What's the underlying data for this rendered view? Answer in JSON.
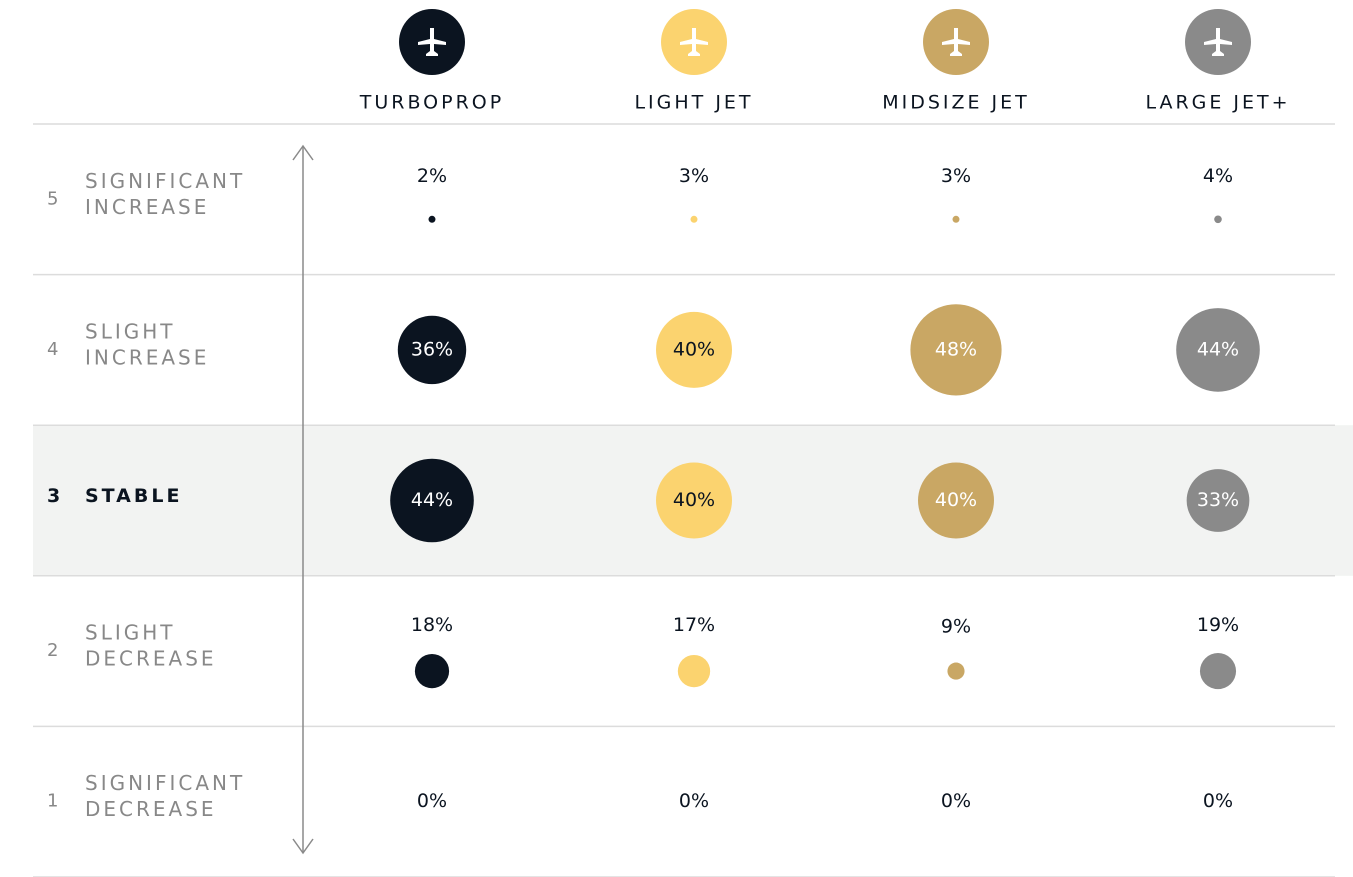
{
  "chart_data": {
    "type": "bubble",
    "levels": [
      {
        "number": "5",
        "label": [
          "SIGNIFICANT",
          "INCREASE"
        ]
      },
      {
        "number": "4",
        "label": [
          "SLIGHT",
          "INCREASE"
        ]
      },
      {
        "number": "3",
        "label": [
          "STABLE"
        ]
      },
      {
        "number": "2",
        "label": [
          "SLIGHT",
          "DECREASE"
        ]
      },
      {
        "number": "1",
        "label": [
          "SIGNIFICANT",
          "DECREASE"
        ]
      }
    ],
    "highlighted_level": "3",
    "series": [
      {
        "name": "TURBOPROP",
        "color": "#0b1420",
        "values": [
          2,
          36,
          44,
          18,
          0
        ],
        "value_labels": [
          "2%",
          "36%",
          "44%",
          "18%",
          "0%"
        ]
      },
      {
        "name": "LIGHT JET",
        "color": "#fbd36f",
        "values": [
          3,
          40,
          40,
          17,
          0
        ],
        "value_labels": [
          "3%",
          "40%",
          "40%",
          "17%",
          "0%"
        ]
      },
      {
        "name": "MIDSIZE JET",
        "color": "#c9a764",
        "values": [
          3,
          48,
          40,
          9,
          0
        ],
        "value_labels": [
          "3%",
          "48%",
          "40%",
          "9%",
          "0%"
        ]
      },
      {
        "name": "LARGE JET+",
        "color": "#8a8a8a",
        "values": [
          4,
          44,
          33,
          19,
          0
        ],
        "value_labels": [
          "4%",
          "44%",
          "33%",
          "19%",
          "0%"
        ]
      }
    ]
  }
}
